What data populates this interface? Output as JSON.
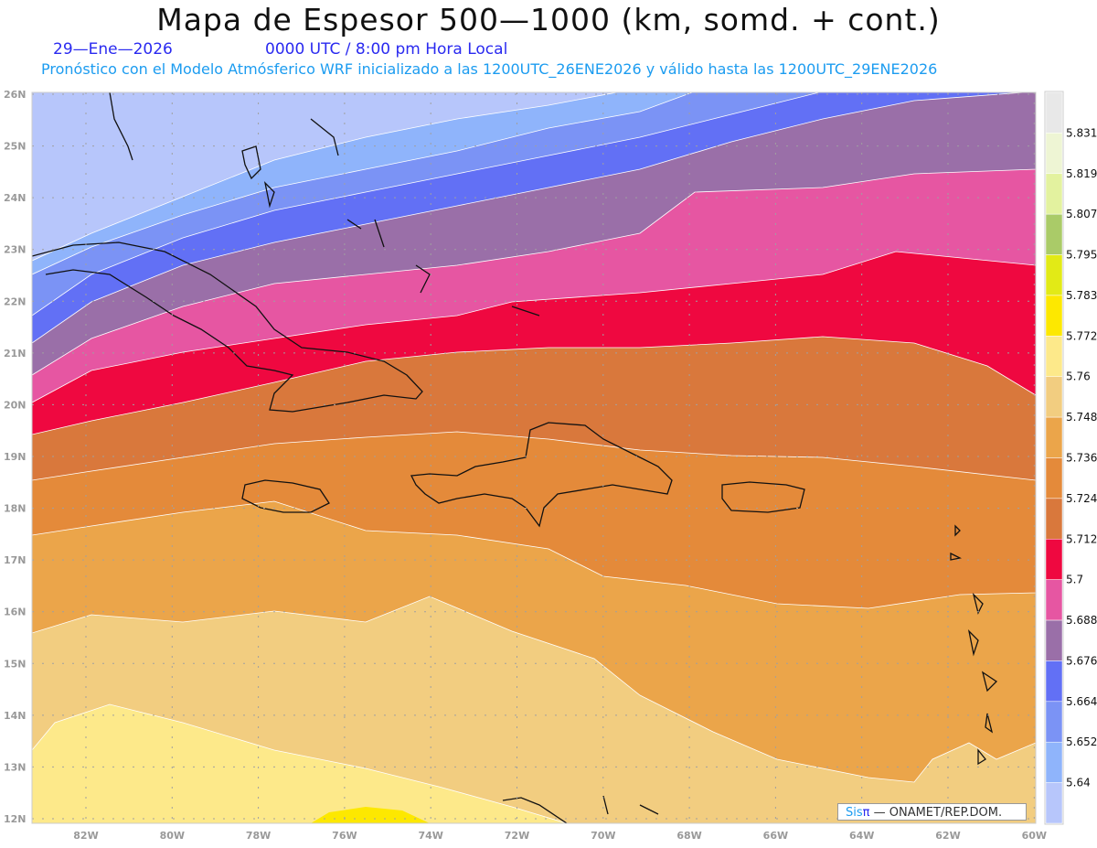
{
  "header": {
    "title": "Mapa de Espesor 500—1000 (km, somd. + cont.)",
    "date": "29—Ene—2026",
    "time": "0000 UTC / 8:00 pm Hora Local",
    "forecast": "Pronóstico con el Modelo Atmósferico WRF inicializado a las 1200UTC_26ENE2026 y válido hasta las  1200UTC_29ENE2026"
  },
  "axes": {
    "lat_labels": [
      "26N",
      "25N",
      "24N",
      "23N",
      "22N",
      "21N",
      "20N",
      "19N",
      "18N",
      "17N",
      "16N",
      "15N",
      "14N",
      "13N",
      "12N"
    ],
    "lon_labels": [
      "82W",
      "80W",
      "78W",
      "76W",
      "74W",
      "72W",
      "70W",
      "68W",
      "66W",
      "64W",
      "62W",
      "60W"
    ]
  },
  "legend": {
    "labels": [
      "5.831",
      "5.819",
      "5.807",
      "5.795",
      "5.783",
      "5.772",
      "5.76",
      "5.748",
      "5.736",
      "5.724",
      "5.712",
      "5.7",
      "5.688",
      "5.676",
      "5.664",
      "5.652",
      "5.64"
    ],
    "colors": [
      "#e8e8e8",
      "#eef5d4",
      "#e3f29f",
      "#aacb68",
      "#e2ea16",
      "#fde800",
      "#fde98a",
      "#f2cd80",
      "#eba54a",
      "#e48a3a",
      "#d9783c",
      "#ef0840",
      "#e656a2",
      "#9a6fa8",
      "#6270f5",
      "#7b93f5",
      "#8fb4fb",
      "#b7c6fb"
    ]
  },
  "attribution": {
    "sis": "Sis",
    "pi": "π",
    "text": "—  ONAMET/REP.DOM."
  }
}
